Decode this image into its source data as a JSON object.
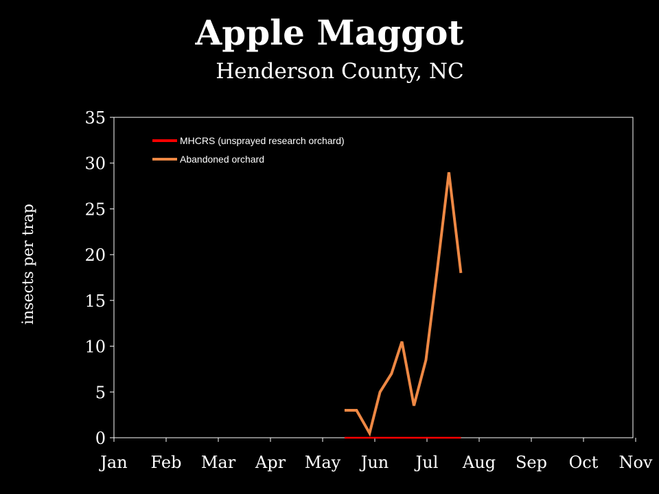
{
  "chart_data": {
    "type": "line",
    "title": "Apple Maggot",
    "subtitle": "Henderson County, NC",
    "ylabel": "insects per trap",
    "xlabel": "",
    "ylim": [
      0,
      35
    ],
    "yticks": [
      0,
      5,
      10,
      15,
      20,
      25,
      30,
      35
    ],
    "categories": [
      "Jan",
      "Feb",
      "Mar",
      "Apr",
      "May",
      "Jun",
      "Jul",
      "Aug",
      "Sep",
      "Oct",
      "Nov"
    ],
    "grid": false,
    "legend_position": "top-left",
    "series": [
      {
        "name": "MHCRS (unsprayed research orchard)",
        "color": "#ff0000",
        "x": [
          4.42,
          4.65,
          4.9,
          5.15,
          5.4,
          5.65,
          5.9,
          6.15,
          6.4,
          6.65
        ],
        "y": [
          0,
          0,
          0,
          0,
          0,
          0,
          0,
          0,
          0,
          0
        ]
      },
      {
        "name": "Abandoned orchard",
        "color": "#ee8844",
        "x": [
          4.42,
          4.65,
          4.9,
          5.1,
          5.32,
          5.52,
          5.75,
          5.98,
          6.2,
          6.42,
          6.65
        ],
        "y": [
          3,
          3,
          0.5,
          5,
          7,
          10.5,
          3.5,
          8.5,
          18.5,
          29,
          18
        ]
      }
    ]
  }
}
